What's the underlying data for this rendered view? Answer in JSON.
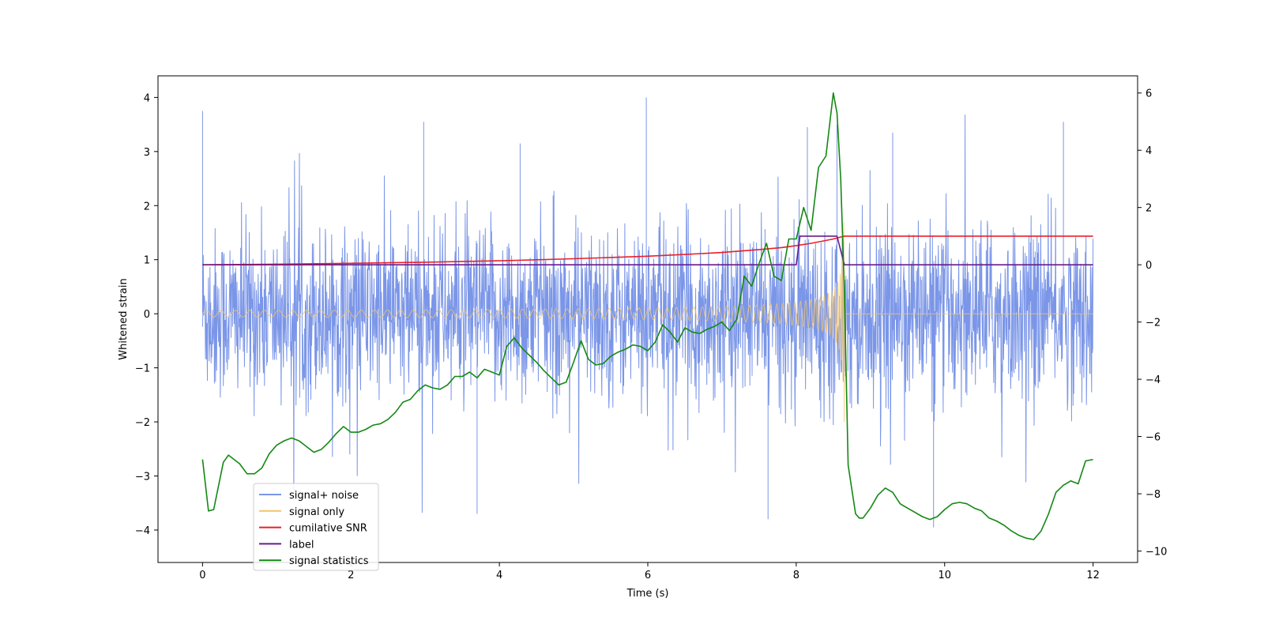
{
  "chart_data": {
    "type": "line",
    "title": "",
    "xlabel": "Time (s)",
    "ylabel": "Whitened strain",
    "ylabel_right": "",
    "xlim": [
      -0.6,
      12.6
    ],
    "ylim": [
      -4.6,
      4.4
    ],
    "ylim_right": [
      -10.4,
      6.6
    ],
    "x_ticks": [
      0,
      2,
      4,
      6,
      8,
      10,
      12
    ],
    "y_ticks": [
      -4,
      -3,
      -2,
      -1,
      0,
      1,
      2,
      3,
      4
    ],
    "y_ticks_right": [
      -10,
      -8,
      -6,
      -4,
      -2,
      0,
      2,
      4,
      6
    ],
    "x_tick_labels": [
      "0",
      "2",
      "4",
      "6",
      "8",
      "10",
      "12"
    ],
    "y_tick_labels": [
      "−4",
      "−3",
      "−2",
      "−1",
      "0",
      "1",
      "2",
      "3",
      "4"
    ],
    "y_tick_labels_right": [
      "−10",
      "−8",
      "−6",
      "−4",
      "−2",
      "0",
      "2",
      "4",
      "6"
    ],
    "grid": false,
    "legend_position": "lower-left",
    "legend": [
      {
        "label": "signal+ noise",
        "color": "#7b96e8"
      },
      {
        "label": "signal only",
        "color": "#f2c46a"
      },
      {
        "label": "cumilative SNR",
        "color": "#e8202a"
      },
      {
        "label": "label",
        "color": "#6a1b8a"
      },
      {
        "label": "signal statistics",
        "color": "#148814"
      }
    ],
    "series": [
      {
        "name": "signal+ noise",
        "axis": "left",
        "color": "#7b96e8",
        "style": "dense-noise",
        "x_range": [
          0,
          12
        ],
        "envelope": {
          "upper_typical": 1.9,
          "lower_typical": -2.0,
          "max": 4.0,
          "min": -4.0
        },
        "spikes": [
          [
            0.0,
            3.75
          ],
          [
            5.98,
            4.0
          ],
          [
            2.98,
            3.55
          ],
          [
            11.6,
            3.55
          ],
          [
            8.55,
            3.5
          ],
          [
            7.62,
            -3.8
          ],
          [
            3.7,
            -3.7
          ],
          [
            9.85,
            -3.95
          ],
          [
            8.15,
            3.45
          ],
          [
            9.3,
            3.35
          ],
          [
            4.28,
            3.15
          ]
        ]
      },
      {
        "name": "signal only",
        "axis": "left",
        "color": "#f2c46a",
        "style": "chirp",
        "x_range": [
          0,
          8.65
        ],
        "merger_time": 8.65,
        "start_amplitude": 0.06,
        "peak_amplitude": 2.0,
        "post_merger_value": 0
      },
      {
        "name": "cumilative SNR",
        "axis": "right",
        "color": "#e8202a",
        "x": [
          0,
          1,
          2,
          3,
          4,
          5,
          6,
          6.5,
          7,
          7.5,
          7.8,
          8.0,
          8.2,
          8.4,
          8.5,
          8.6,
          8.65,
          12
        ],
        "y": [
          0.0,
          0.02,
          0.05,
          0.09,
          0.14,
          0.21,
          0.3,
          0.36,
          0.43,
          0.53,
          0.6,
          0.67,
          0.75,
          0.85,
          0.9,
          0.97,
          1.0,
          1.0
        ]
      },
      {
        "name": "label",
        "axis": "right",
        "color": "#6a1b8a",
        "x": [
          0,
          8.0,
          8.05,
          8.55,
          8.65,
          12
        ],
        "y": [
          0,
          0,
          1,
          1,
          0,
          0
        ]
      },
      {
        "name": "signal statistics",
        "axis": "right",
        "color": "#148814",
        "x": [
          0.0,
          0.08,
          0.15,
          0.28,
          0.35,
          0.5,
          0.6,
          0.7,
          0.8,
          0.9,
          1.0,
          1.1,
          1.2,
          1.3,
          1.4,
          1.5,
          1.6,
          1.7,
          1.8,
          1.9,
          2.0,
          2.1,
          2.2,
          2.3,
          2.4,
          2.5,
          2.6,
          2.7,
          2.8,
          2.9,
          3.0,
          3.1,
          3.2,
          3.3,
          3.4,
          3.5,
          3.6,
          3.7,
          3.8,
          3.9,
          4.0,
          4.1,
          4.2,
          4.3,
          4.4,
          4.5,
          4.6,
          4.7,
          4.8,
          4.9,
          5.0,
          5.1,
          5.2,
          5.3,
          5.4,
          5.5,
          5.6,
          5.7,
          5.8,
          5.9,
          6.0,
          6.1,
          6.2,
          6.3,
          6.4,
          6.5,
          6.6,
          6.7,
          6.8,
          6.9,
          7.0,
          7.1,
          7.2,
          7.3,
          7.4,
          7.5,
          7.6,
          7.7,
          7.8,
          7.9,
          8.0,
          8.1,
          8.2,
          8.3,
          8.4,
          8.5,
          8.55,
          8.6,
          8.65,
          8.7,
          8.8,
          8.85,
          8.9,
          9.0,
          9.1,
          9.2,
          9.3,
          9.4,
          9.5,
          9.6,
          9.7,
          9.8,
          9.9,
          10.0,
          10.1,
          10.2,
          10.3,
          10.4,
          10.5,
          10.6,
          10.7,
          10.8,
          10.9,
          11.0,
          11.1,
          11.2,
          11.3,
          11.4,
          11.5,
          11.6,
          11.7,
          11.8,
          11.9,
          12.0
        ],
        "y": [
          -6.8,
          -8.6,
          -8.55,
          -6.9,
          -6.65,
          -6.95,
          -7.3,
          -7.3,
          -7.1,
          -6.6,
          -6.3,
          -6.15,
          -6.05,
          -6.15,
          -6.35,
          -6.55,
          -6.45,
          -6.2,
          -5.9,
          -5.65,
          -5.85,
          -5.85,
          -5.75,
          -5.6,
          -5.55,
          -5.4,
          -5.15,
          -4.8,
          -4.7,
          -4.4,
          -4.2,
          -4.3,
          -4.35,
          -4.2,
          -3.9,
          -3.9,
          -3.75,
          -3.95,
          -3.65,
          -3.75,
          -3.85,
          -2.85,
          -2.55,
          -2.9,
          -3.15,
          -3.4,
          -3.7,
          -3.95,
          -4.2,
          -4.1,
          -3.4,
          -2.65,
          -3.3,
          -3.5,
          -3.45,
          -3.2,
          -3.05,
          -2.95,
          -2.8,
          -2.85,
          -3.0,
          -2.7,
          -2.1,
          -2.35,
          -2.7,
          -2.2,
          -2.35,
          -2.4,
          -2.25,
          -2.15,
          -2.0,
          -2.3,
          -1.9,
          -0.4,
          -0.75,
          0.05,
          0.75,
          -0.4,
          -0.55,
          0.9,
          0.9,
          2.0,
          1.2,
          3.4,
          3.8,
          6.0,
          5.3,
          3.0,
          -1.0,
          -7.0,
          -8.7,
          -8.85,
          -8.85,
          -8.5,
          -8.05,
          -7.8,
          -7.95,
          -8.35,
          -8.5,
          -8.65,
          -8.8,
          -8.9,
          -8.8,
          -8.55,
          -8.35,
          -8.3,
          -8.35,
          -8.5,
          -8.6,
          -8.85,
          -8.95,
          -9.1,
          -9.3,
          -9.45,
          -9.55,
          -9.6,
          -9.3,
          -8.7,
          -7.95,
          -7.7,
          -7.55,
          -7.65,
          -6.85,
          -6.8
        ]
      }
    ]
  }
}
